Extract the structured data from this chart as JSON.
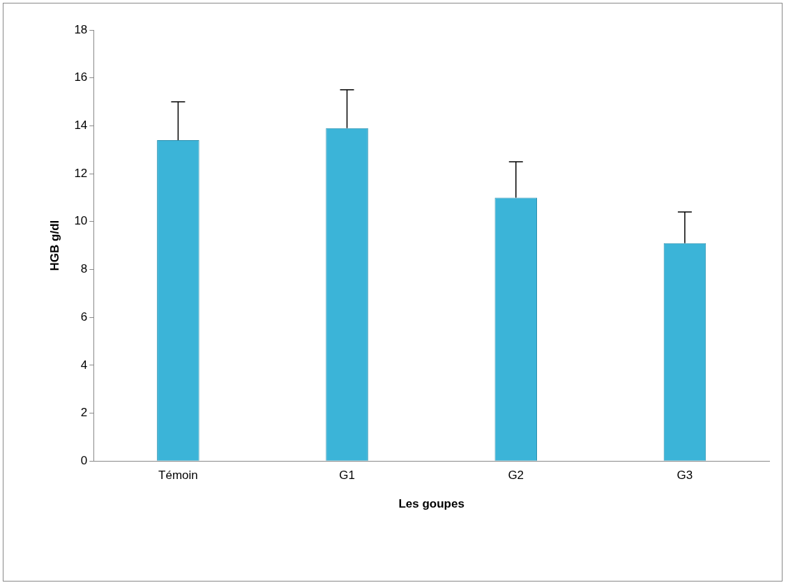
{
  "chart_data": {
    "type": "bar",
    "xlabel": "Les goupes",
    "ylabel": "HGB g/dl",
    "categories": [
      "Témoin",
      "G1",
      "G2",
      "G3"
    ],
    "values": [
      13.4,
      13.9,
      11.0,
      9.1
    ],
    "color": "#3bb4d8",
    "errors": [
      [
        13.4,
        15.0
      ],
      [
        13.9,
        15.5
      ],
      [
        11.0,
        12.5
      ],
      [
        9.1,
        10.4
      ]
    ],
    "ylim": [
      0,
      18
    ],
    "yticks": [
      0,
      2,
      4,
      6,
      8,
      10,
      12,
      14,
      16,
      18
    ],
    "grid": false,
    "legend": false
  }
}
